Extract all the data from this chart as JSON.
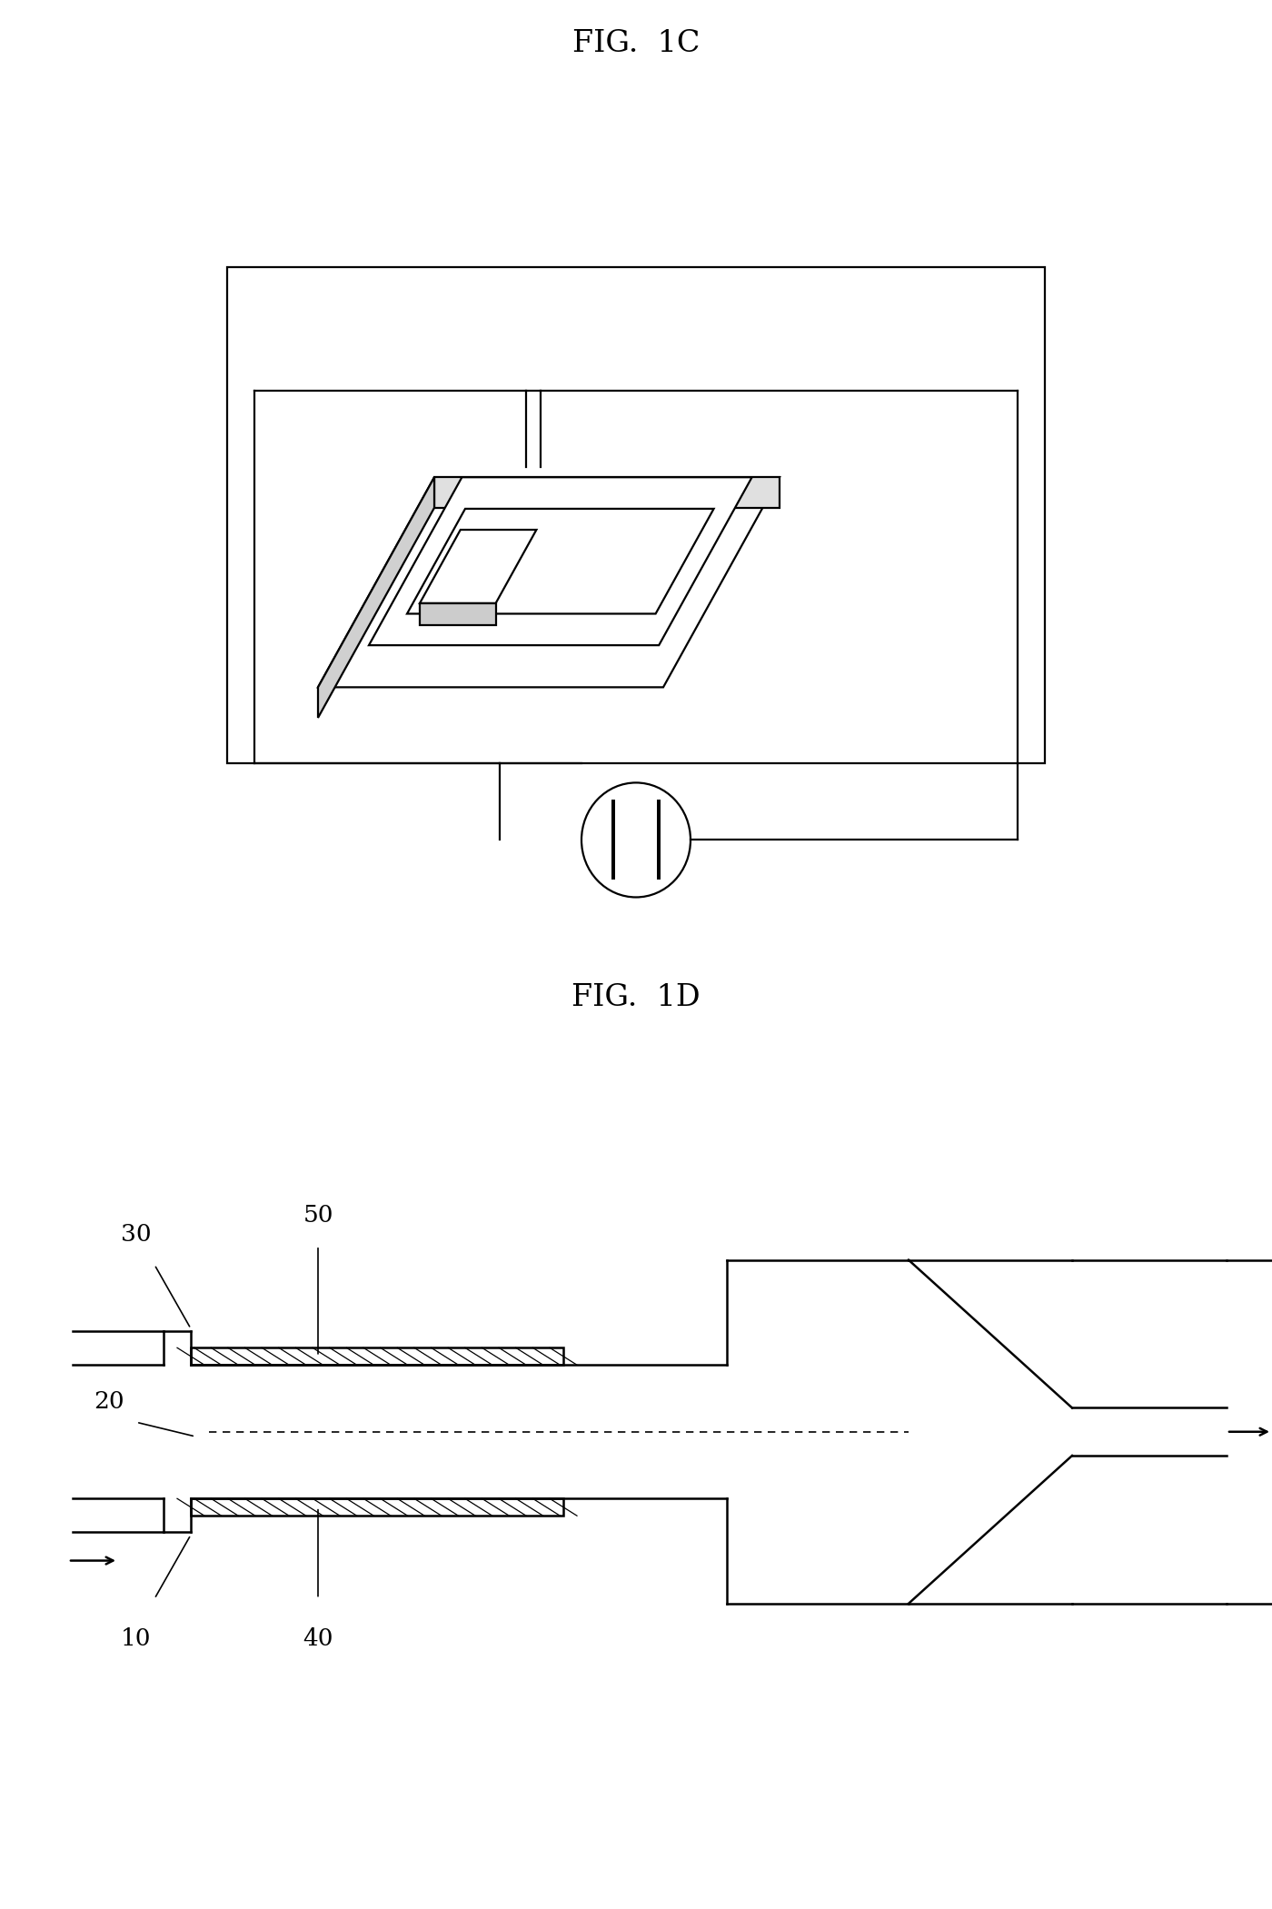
{
  "fig_title_1": "FIG.  1C",
  "fig_title_2": "FIG.  1D",
  "bg_color": "#ffffff",
  "line_color": "#000000",
  "label_30": "30",
  "label_50": "50",
  "label_20": "20",
  "label_10": "10",
  "label_40": "40",
  "title_fontsize": 24,
  "label_fontsize": 19
}
